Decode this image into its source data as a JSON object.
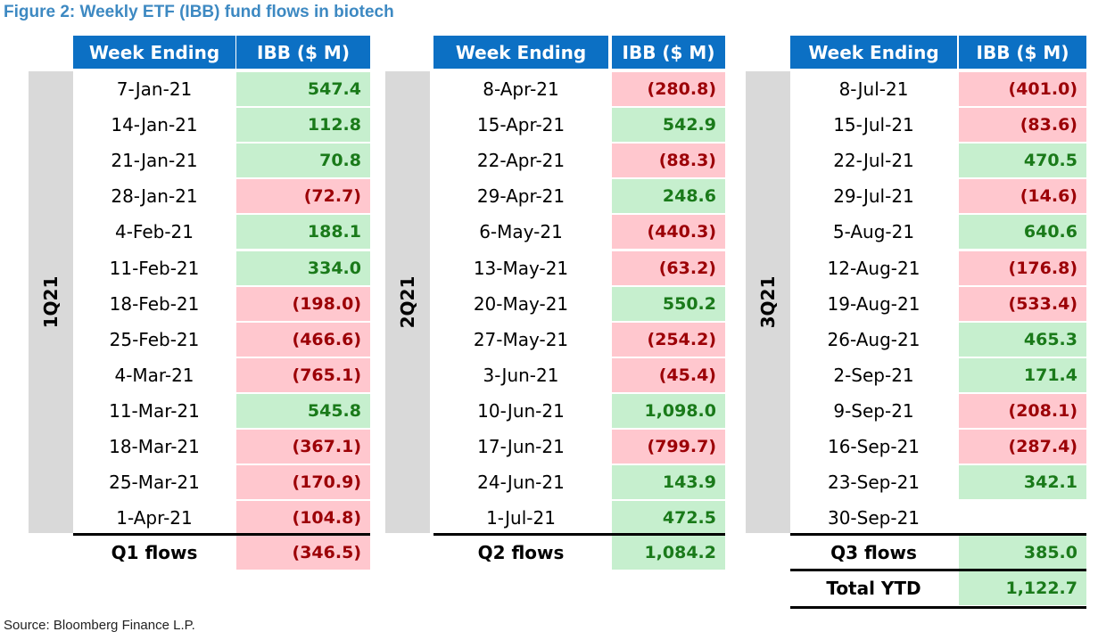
{
  "title": "Figure 2: Weekly ETF (IBB) fund flows in biotech",
  "source": "Source: Bloomberg Finance L.P.",
  "colors": {
    "header_bg": "#0c70c4",
    "positive_bg": "#c6efce",
    "positive_text": "#1a7a1a",
    "negative_bg": "#ffc7ce",
    "negative_text": "#9c0006",
    "quarter_bg": "#d9d9d9",
    "title": "#3d89c2"
  },
  "tables": [
    {
      "quarter": "1Q21",
      "header": {
        "week": "Week Ending",
        "ibb": "IBB ($ M)"
      },
      "rows": [
        {
          "week": "7-Jan-21",
          "value": "547.4",
          "sign": "pos"
        },
        {
          "week": "14-Jan-21",
          "value": "112.8",
          "sign": "pos"
        },
        {
          "week": "21-Jan-21",
          "value": "70.8",
          "sign": "pos"
        },
        {
          "week": "28-Jan-21",
          "value": "(72.7)",
          "sign": "neg"
        },
        {
          "week": "4-Feb-21",
          "value": "188.1",
          "sign": "pos"
        },
        {
          "week": "11-Feb-21",
          "value": "334.0",
          "sign": "pos"
        },
        {
          "week": "18-Feb-21",
          "value": "(198.0)",
          "sign": "neg"
        },
        {
          "week": "25-Feb-21",
          "value": "(466.6)",
          "sign": "neg"
        },
        {
          "week": "4-Mar-21",
          "value": "(765.1)",
          "sign": "neg"
        },
        {
          "week": "11-Mar-21",
          "value": "545.8",
          "sign": "pos"
        },
        {
          "week": "18-Mar-21",
          "value": "(367.1)",
          "sign": "neg"
        },
        {
          "week": "25-Mar-21",
          "value": "(170.9)",
          "sign": "neg"
        },
        {
          "week": "1-Apr-21",
          "value": "(104.8)",
          "sign": "neg"
        }
      ],
      "summary": {
        "label": "Q1 flows",
        "value": "(346.5)",
        "sign": "neg"
      }
    },
    {
      "quarter": "2Q21",
      "header": {
        "week": "Week Ending",
        "ibb": "IBB ($ M)"
      },
      "rows": [
        {
          "week": "8-Apr-21",
          "value": "(280.8)",
          "sign": "neg"
        },
        {
          "week": "15-Apr-21",
          "value": "542.9",
          "sign": "pos"
        },
        {
          "week": "22-Apr-21",
          "value": "(88.3)",
          "sign": "neg"
        },
        {
          "week": "29-Apr-21",
          "value": "248.6",
          "sign": "pos"
        },
        {
          "week": "6-May-21",
          "value": "(440.3)",
          "sign": "neg"
        },
        {
          "week": "13-May-21",
          "value": "(63.2)",
          "sign": "neg"
        },
        {
          "week": "20-May-21",
          "value": "550.2",
          "sign": "pos"
        },
        {
          "week": "27-May-21",
          "value": "(254.2)",
          "sign": "neg"
        },
        {
          "week": "3-Jun-21",
          "value": "(45.4)",
          "sign": "neg"
        },
        {
          "week": "10-Jun-21",
          "value": "1,098.0",
          "sign": "pos"
        },
        {
          "week": "17-Jun-21",
          "value": "(799.7)",
          "sign": "neg"
        },
        {
          "week": "24-Jun-21",
          "value": "143.9",
          "sign": "pos"
        },
        {
          "week": "1-Jul-21",
          "value": "472.5",
          "sign": "pos"
        }
      ],
      "summary": {
        "label": "Q2 flows",
        "value": "1,084.2",
        "sign": "pos"
      }
    },
    {
      "quarter": "3Q21",
      "header": {
        "week": "Week Ending",
        "ibb": "IBB ($ M)"
      },
      "rows": [
        {
          "week": "8-Jul-21",
          "value": "(401.0)",
          "sign": "neg"
        },
        {
          "week": "15-Jul-21",
          "value": "(83.6)",
          "sign": "neg"
        },
        {
          "week": "22-Jul-21",
          "value": "470.5",
          "sign": "pos"
        },
        {
          "week": "29-Jul-21",
          "value": "(14.6)",
          "sign": "neg"
        },
        {
          "week": "5-Aug-21",
          "value": "640.6",
          "sign": "pos"
        },
        {
          "week": "12-Aug-21",
          "value": "(176.8)",
          "sign": "neg"
        },
        {
          "week": "19-Aug-21",
          "value": "(533.4)",
          "sign": "neg"
        },
        {
          "week": "26-Aug-21",
          "value": "465.3",
          "sign": "pos"
        },
        {
          "week": "2-Sep-21",
          "value": "171.4",
          "sign": "pos"
        },
        {
          "week": "9-Sep-21",
          "value": "(208.1)",
          "sign": "neg"
        },
        {
          "week": "16-Sep-21",
          "value": "(287.4)",
          "sign": "neg"
        },
        {
          "week": "23-Sep-21",
          "value": "342.1",
          "sign": "pos"
        },
        {
          "week": "30-Sep-21",
          "value": "",
          "sign": "none"
        }
      ],
      "summary": {
        "label": "Q3 flows",
        "value": "385.0",
        "sign": "pos"
      },
      "total": {
        "label": "Total YTD",
        "value": "1,122.7",
        "sign": "pos"
      }
    }
  ]
}
